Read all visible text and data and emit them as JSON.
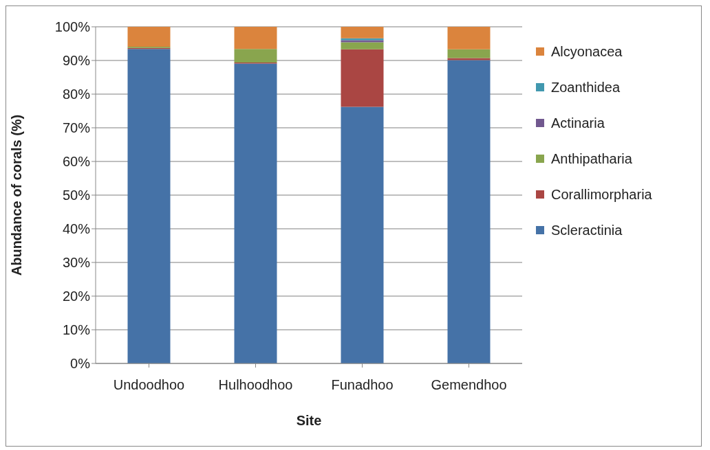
{
  "chart_data": {
    "type": "bar",
    "stacked": true,
    "xlabel": "Site",
    "ylabel": "Abundance of corals (%)",
    "categories": [
      "Undoodhoo",
      "Hulhoodhoo",
      "Funadhoo",
      "Gemendhoo"
    ],
    "series": [
      {
        "name": "Scleractinia",
        "color": "#4572a7",
        "values": [
          93.4,
          89.1,
          76.2,
          90.1
        ]
      },
      {
        "name": "Corallimorpharia",
        "color": "#aa4643",
        "values": [
          0.3,
          0.3,
          17.1,
          0.6
        ]
      },
      {
        "name": "Anthipatharia",
        "color": "#89a54e",
        "values": [
          0.4,
          4.0,
          2.1,
          2.6
        ]
      },
      {
        "name": "Actinaria",
        "color": "#71588f",
        "values": [
          0,
          0,
          0.6,
          0
        ]
      },
      {
        "name": "Zoanthidea",
        "color": "#4198af",
        "values": [
          0,
          0,
          0.6,
          0
        ]
      },
      {
        "name": "Alcyonacea",
        "color": "#db843d",
        "values": [
          5.9,
          6.6,
          3.4,
          6.7
        ]
      }
    ],
    "ylim": [
      0,
      100
    ],
    "yticks": [
      {
        "value": 0,
        "label": "0%"
      },
      {
        "value": 10,
        "label": "10%"
      },
      {
        "value": 20,
        "label": "20%"
      },
      {
        "value": 30,
        "label": "30%"
      },
      {
        "value": 40,
        "label": "40%"
      },
      {
        "value": 50,
        "label": "50%"
      },
      {
        "value": 60,
        "label": "60%"
      },
      {
        "value": 70,
        "label": "70%"
      },
      {
        "value": 80,
        "label": "80%"
      },
      {
        "value": 90,
        "label": "90%"
      },
      {
        "value": 100,
        "label": "100%"
      }
    ],
    "grid": "y",
    "legend": "right"
  }
}
